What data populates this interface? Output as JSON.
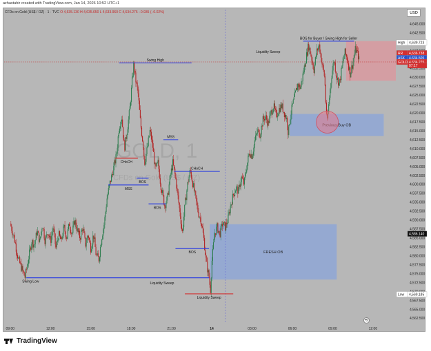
{
  "credit": "azhastahir created with TradingView.com, Jan 14, 2026 10:52 UTC+1",
  "symbol": {
    "title": "CFDs on Gold (US$ / OZ) · 1 · TVC",
    "ohlc": "O 4,635.130 H 4,635.650 L 4,633.960 C 4,634.275 −0.935 (−0.02%)"
  },
  "currency_button": "USD",
  "footer_brand": "TradingView",
  "watermark": {
    "symbol": "GOLD, 1",
    "name": "CFDs on Gold (US$ / OZ)"
  },
  "colors": {
    "background": "#b7b7b7",
    "up_candle": "#2e7d4f",
    "down_candle": "#b22222",
    "level_blue": "#2d3fe0",
    "level_red": "#d32f2f",
    "demand_zone": "#8fa7d6",
    "supply_zone": "#d99aa0",
    "current_price": "#c62828"
  },
  "price_axis": {
    "ticks": [
      "4,645.000",
      "4,642.500",
      "4,640.000",
      "4,637.500",
      "4,635.000",
      "4,632.500",
      "4,630.000",
      "4,627.500",
      "4,625.000",
      "4,622.500",
      "4,620.000",
      "4,617.500",
      "4,615.000",
      "4,612.500",
      "4,610.000",
      "4,607.500",
      "4,605.000",
      "4,602.500",
      "4,600.000",
      "4,597.500",
      "4,595.000",
      "4,592.500",
      "4,590.000",
      "4,587.500",
      "4,585.000",
      "4,582.500",
      "4,580.000",
      "4,577.500",
      "4,575.000",
      "4,572.500",
      "4,570.000",
      "4,567.500",
      "4,565.000",
      "4,562.500"
    ],
    "labels": [
      {
        "tag": "High",
        "value": "4,639.723",
        "price": 4639.723,
        "style": "white"
      },
      {
        "tag": "RR",
        "value": "4,636.738",
        "price": 4636.738,
        "style": "red"
      },
      {
        "tag": "ASK",
        "value": "4,634.505",
        "price": 4635.4,
        "style": "blue"
      },
      {
        "tag": "GOLD",
        "value": "4,634.275",
        "price": 4634.275,
        "style": "red"
      },
      {
        "tag": "",
        "value": "07:17",
        "price": 4633.3,
        "style": "red"
      },
      {
        "tag": "",
        "value": "4,586.140",
        "price": 4586.14,
        "style": "black"
      },
      {
        "tag": "Low",
        "value": "4,569.185",
        "price": 4569.185,
        "style": "white"
      }
    ]
  },
  "time_axis": {
    "labels": [
      {
        "label": "09:00",
        "hour": 0
      },
      {
        "label": "12:00",
        "hour": 3
      },
      {
        "label": "15:00",
        "hour": 6
      },
      {
        "label": "18:00",
        "hour": 9
      },
      {
        "label": "21:00",
        "hour": 12
      },
      {
        "label": "14",
        "hour": 15
      },
      {
        "label": "03:00",
        "hour": 18
      },
      {
        "label": "06:00",
        "hour": 21
      },
      {
        "label": "09:00",
        "hour": 24
      },
      {
        "label": "12:00",
        "hour": 27
      }
    ]
  },
  "chart_data": {
    "type": "candlestick",
    "symbol": "GOLD",
    "timeframe": "1",
    "ylim": [
      4561,
      4647
    ],
    "xlim_hours": [
      -0.45,
      28.7
    ],
    "grid": false,
    "price_path": [
      [
        0.0,
        4589
      ],
      [
        0.3,
        4585
      ],
      [
        0.6,
        4579
      ],
      [
        0.9,
        4576
      ],
      [
        1.1,
        4574
      ],
      [
        1.4,
        4580
      ],
      [
        1.6,
        4584
      ],
      [
        1.8,
        4583
      ],
      [
        2.0,
        4587
      ],
      [
        2.2,
        4584
      ],
      [
        2.4,
        4589
      ],
      [
        2.6,
        4584
      ],
      [
        2.8,
        4587
      ],
      [
        3.0,
        4584
      ],
      [
        3.2,
        4588
      ],
      [
        3.4,
        4582
      ],
      [
        3.6,
        4586
      ],
      [
        3.8,
        4584
      ],
      [
        4.0,
        4588
      ],
      [
        4.2,
        4585
      ],
      [
        4.4,
        4589
      ],
      [
        4.6,
        4586
      ],
      [
        4.8,
        4590
      ],
      [
        5.0,
        4587
      ],
      [
        5.2,
        4585
      ],
      [
        5.4,
        4588
      ],
      [
        5.6,
        4583
      ],
      [
        5.8,
        4586
      ],
      [
        6.0,
        4582
      ],
      [
        6.2,
        4586
      ],
      [
        6.4,
        4580
      ],
      [
        6.6,
        4579
      ],
      [
        6.8,
        4585
      ],
      [
        7.0,
        4589
      ],
      [
        7.2,
        4596
      ],
      [
        7.4,
        4600
      ],
      [
        7.6,
        4603
      ],
      [
        7.9,
        4608
      ],
      [
        8.1,
        4616
      ],
      [
        8.3,
        4619
      ],
      [
        8.5,
        4610
      ],
      [
        8.7,
        4615
      ],
      [
        8.9,
        4621
      ],
      [
        9.1,
        4630
      ],
      [
        9.2,
        4634
      ],
      [
        9.3,
        4630
      ],
      [
        9.5,
        4626
      ],
      [
        9.7,
        4617
      ],
      [
        9.9,
        4611
      ],
      [
        10.0,
        4606
      ],
      [
        10.2,
        4610
      ],
      [
        10.4,
        4615
      ],
      [
        10.6,
        4611
      ],
      [
        10.8,
        4604
      ],
      [
        11.0,
        4606
      ],
      [
        11.2,
        4600
      ],
      [
        11.4,
        4596
      ],
      [
        11.5,
        4594
      ],
      [
        11.7,
        4596
      ],
      [
        11.9,
        4602
      ],
      [
        12.1,
        4606
      ],
      [
        12.3,
        4602
      ],
      [
        12.5,
        4596
      ],
      [
        12.7,
        4590
      ],
      [
        12.8,
        4586
      ],
      [
        13.0,
        4594
      ],
      [
        13.2,
        4600
      ],
      [
        13.4,
        4604
      ],
      [
        13.6,
        4600
      ],
      [
        13.8,
        4596
      ],
      [
        14.0,
        4592
      ],
      [
        14.2,
        4590
      ],
      [
        14.4,
        4585
      ],
      [
        14.6,
        4578
      ],
      [
        14.8,
        4574
      ],
      [
        14.9,
        4570
      ],
      [
        15.0,
        4578
      ],
      [
        15.2,
        4586
      ],
      [
        15.4,
        4588
      ],
      [
        15.6,
        4586
      ],
      [
        15.8,
        4589
      ],
      [
        16.0,
        4588
      ],
      [
        16.2,
        4590
      ],
      [
        16.4,
        4594
      ],
      [
        16.6,
        4597
      ],
      [
        16.8,
        4599
      ],
      [
        17.0,
        4598
      ],
      [
        17.2,
        4602
      ],
      [
        17.4,
        4600
      ],
      [
        17.6,
        4605
      ],
      [
        17.8,
        4609
      ],
      [
        18.0,
        4608
      ],
      [
        18.2,
        4612
      ],
      [
        18.4,
        4615
      ],
      [
        18.6,
        4614
      ],
      [
        18.8,
        4618
      ],
      [
        19.0,
        4619
      ],
      [
        19.2,
        4617
      ],
      [
        19.4,
        4620
      ],
      [
        19.6,
        4622
      ],
      [
        19.8,
        4619
      ],
      [
        20.0,
        4621
      ],
      [
        20.2,
        4622
      ],
      [
        20.4,
        4620
      ],
      [
        20.6,
        4618
      ],
      [
        20.7,
        4614
      ],
      [
        20.8,
        4618
      ],
      [
        21.0,
        4622
      ],
      [
        21.2,
        4625
      ],
      [
        21.4,
        4628
      ],
      [
        21.6,
        4627
      ],
      [
        21.8,
        4631
      ],
      [
        22.0,
        4635
      ],
      [
        22.2,
        4639
      ],
      [
        22.4,
        4636
      ],
      [
        22.6,
        4632
      ],
      [
        22.8,
        4637
      ],
      [
        23.0,
        4639
      ],
      [
        23.2,
        4634
      ],
      [
        23.4,
        4630
      ],
      [
        23.5,
        4622
      ],
      [
        23.6,
        4617
      ],
      [
        23.7,
        4622
      ],
      [
        23.9,
        4630
      ],
      [
        24.1,
        4635
      ],
      [
        24.3,
        4630
      ],
      [
        24.5,
        4628
      ],
      [
        24.7,
        4633
      ],
      [
        24.9,
        4637
      ],
      [
        25.1,
        4635
      ],
      [
        25.3,
        4631
      ],
      [
        25.5,
        4634
      ],
      [
        25.7,
        4638
      ],
      [
        25.9,
        4636
      ],
      [
        26.0,
        4634.3
      ]
    ],
    "levels": [
      {
        "label": "Swing High",
        "price": 4634.0,
        "x0": 8.1,
        "x1": 13.5,
        "color": "blue",
        "text_above": true
      },
      {
        "label": "Swing Low",
        "price": 4573.8,
        "x0": 1.2,
        "x1": 14.8,
        "color": "blue",
        "text_above": false,
        "text_x": 0.9
      },
      {
        "label": "Liquidity Sweep",
        "price": 4569.3,
        "x0": 13.0,
        "x1": 16.6,
        "color": "red",
        "text_above": false
      },
      {
        "label": "CHoCH",
        "price": 4607.3,
        "x0": 7.8,
        "x1": 9.5,
        "color": "red",
        "text_above": false
      },
      {
        "label": "BOS",
        "price": 4601.7,
        "x0": 9.4,
        "x1": 10.3,
        "color": "blue",
        "text_above": false
      },
      {
        "label": "MSS",
        "price": 4599.8,
        "x0": 7.3,
        "x1": 10.3,
        "color": "blue",
        "text_above": false
      },
      {
        "label": "MSS",
        "price": 4612.5,
        "x0": 11.4,
        "x1": 12.5,
        "color": "blue",
        "text_above": true
      },
      {
        "label": "BOS",
        "price": 4594.5,
        "x0": 10.3,
        "x1": 11.6,
        "color": "blue",
        "text_above": false
      },
      {
        "label": "CHoCH",
        "price": 4603.6,
        "x0": 12.2,
        "x1": 15.6,
        "color": "blue",
        "text_above": true
      },
      {
        "label": "BOS",
        "price": 4582.0,
        "x0": 12.3,
        "x1": 14.8,
        "color": "blue",
        "text_above": false
      },
      {
        "label": "BOS for Buyer / Swing High for Seller",
        "price": 4640.1,
        "x0": 21.8,
        "x1": 25.6,
        "color": "blue",
        "text_above": true
      }
    ],
    "annotations": [
      {
        "text": "Liquidity Sweep",
        "hour": 11.3,
        "price": 4572.0
      },
      {
        "text": "Liquidity Sweep",
        "hour": 19.2,
        "price": 4636.8
      }
    ],
    "zones": [
      {
        "label": "FRESH OB",
        "x0": 14.85,
        "x1": 24.3,
        "y0": 4573.3,
        "y1": 4588.8,
        "color": "blue"
      },
      {
        "label": "Previous Buy OB",
        "x0": 20.8,
        "x1": 27.8,
        "y0": 4613.5,
        "y1": 4619.7,
        "color": "blue"
      },
      {
        "label": "",
        "x0": 25.0,
        "x1": 28.7,
        "y0": 4629.0,
        "y1": 4640.1,
        "color": "red"
      }
    ],
    "highlight_circle": {
      "hour": 23.6,
      "price": 4617.4
    },
    "session_divider_hour": 16.0
  }
}
